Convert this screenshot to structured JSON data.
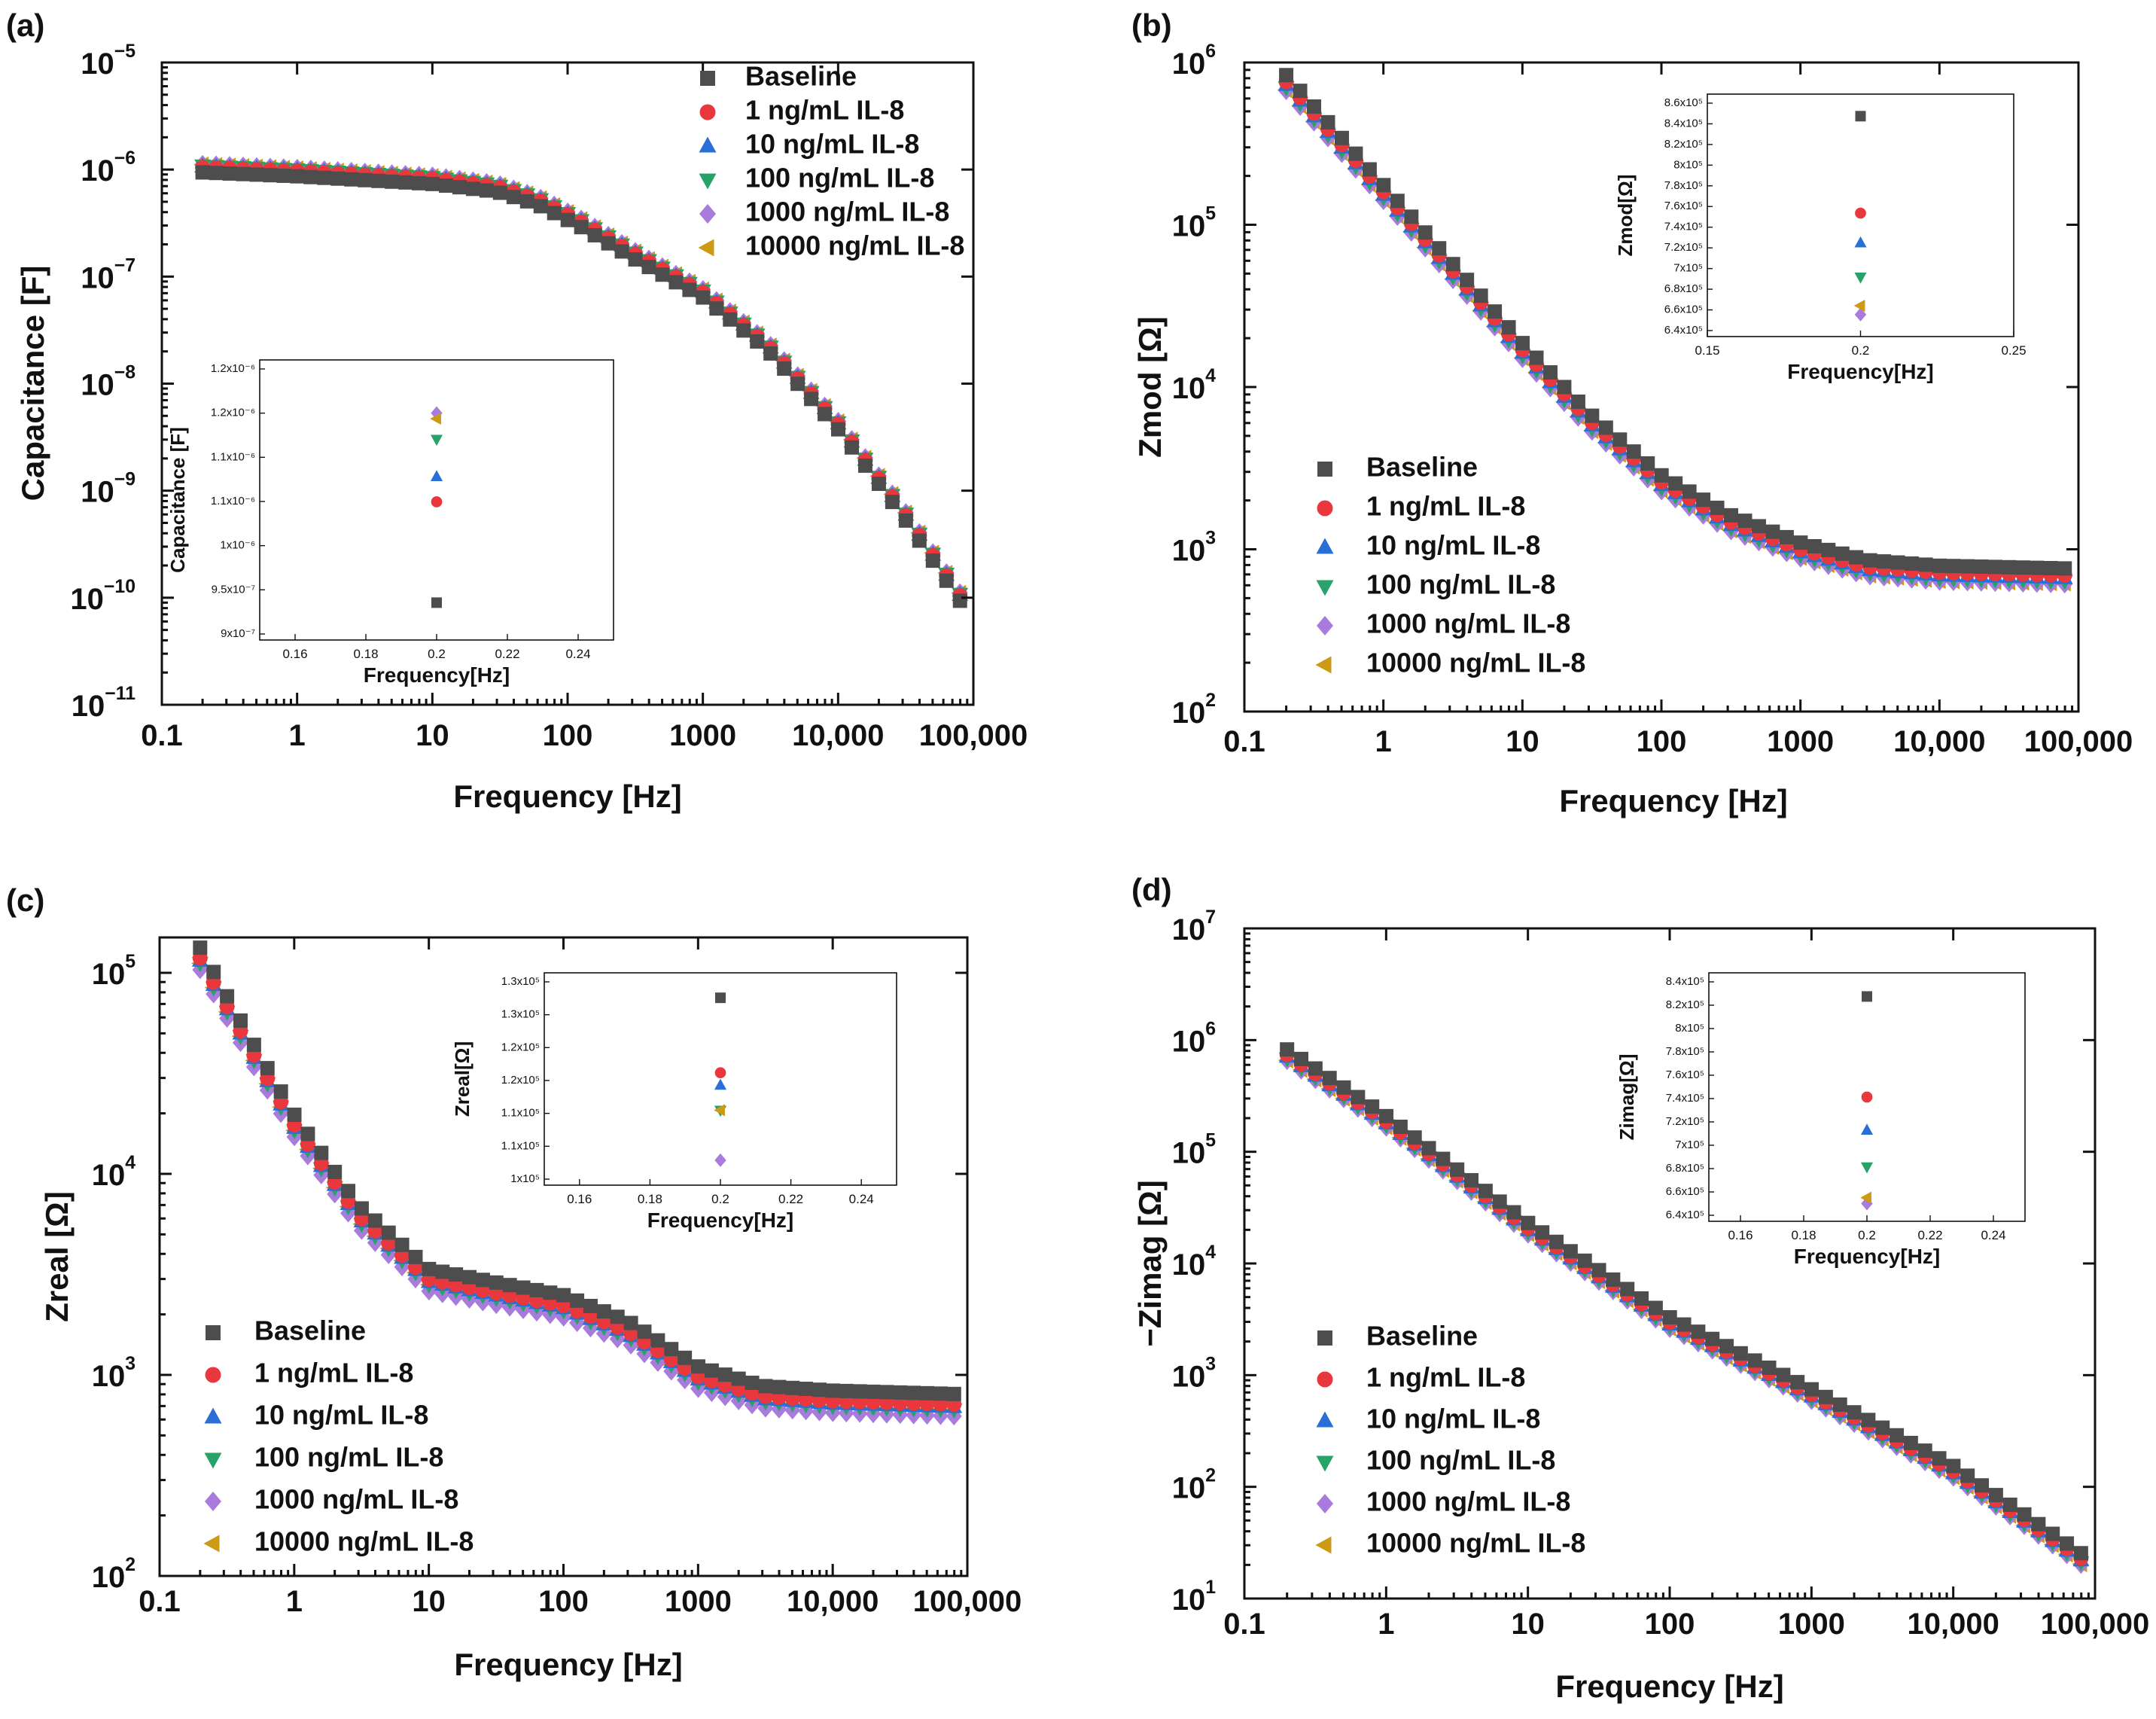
{
  "figure": {
    "series_names": [
      "Baseline",
      "1 ng/mL IL-8",
      "10 ng/mL IL-8",
      "100 ng/mL IL-8",
      "1000 ng/mL IL-8",
      "10000 ng/mL IL-8"
    ],
    "series_colors": [
      "#4d4d4d",
      "#e8383d",
      "#2a6fd6",
      "#27a36a",
      "#a87bdc",
      "#cc9a14"
    ],
    "series_markers": [
      "square",
      "circle",
      "triangle-up",
      "triangle-down",
      "diamond",
      "triangle-left"
    ]
  },
  "chart_data": [
    {
      "panel": "(a)",
      "type": "scatter",
      "xlabel": "Frequency [Hz]",
      "ylabel": "Capacitance [F]",
      "xscale": "log",
      "yscale": "log",
      "xlim": [
        0.1,
        100000
      ],
      "ylim": [
        1e-11,
        1e-05
      ],
      "xticks": [
        "0.1",
        "1",
        "10",
        "100",
        "1000",
        "10,000",
        "100,000"
      ],
      "yticks": [
        {
          "m": "10",
          "e": "−11"
        },
        {
          "m": "10",
          "e": "−10"
        },
        {
          "m": "10",
          "e": "−9"
        },
        {
          "m": "10",
          "e": "−8"
        },
        {
          "m": "10",
          "e": "−7"
        },
        {
          "m": "10",
          "e": "−6"
        },
        {
          "m": "10",
          "e": "−5"
        }
      ],
      "legend_position": "top-right",
      "knots_x": [
        0.2,
        1,
        10,
        30,
        60,
        120,
        300,
        1000,
        3000,
        10000,
        30000,
        100000
      ],
      "knots_y": [
        1e-06,
        9.2e-07,
        7.8e-07,
        6.6e-07,
        5e-07,
        3.2e-07,
        1.6e-07,
        6.8e-08,
        2.2e-08,
        4e-09,
        6.2e-10,
        6.5e-11
      ],
      "series_factors": [
        0.94,
        1.05,
        1.07,
        1.09,
        1.12,
        1.11
      ],
      "inset": {
        "xlabel": "Frequency[Hz]",
        "ylabel": "Capacitance [F]",
        "xlim": [
          0.15,
          0.25
        ],
        "ylim": [
          9e-07,
          1.2e-06
        ],
        "xticks": [
          "0.16",
          "0.18",
          "0.2",
          "0.22",
          "0.24"
        ],
        "yticks": [
          "9x10⁻⁷",
          "9.5x10⁻⁷",
          "1x10⁻⁶",
          "1.1x10⁻⁶",
          "1.1x10⁻⁶",
          "1.2x10⁻⁶",
          "1.2x10⁻⁶"
        ],
        "x": 0.2,
        "values": [
          9.4e-07,
          1.048e-06,
          1.075e-06,
          1.115e-06,
          1.143e-06,
          1.137e-06
        ]
      }
    },
    {
      "panel": "(b)",
      "type": "scatter",
      "xlabel": "Frequency [Hz]",
      "ylabel": "Zmod [Ω]",
      "xscale": "log",
      "yscale": "log",
      "xlim": [
        0.1,
        100000
      ],
      "ylim": [
        100,
        1000000
      ],
      "xticks": [
        "0.1",
        "1",
        "10",
        "100",
        "1000",
        "10,000",
        "100,000"
      ],
      "yticks": [
        {
          "m": "10",
          "e": "2"
        },
        {
          "m": "10",
          "e": "3"
        },
        {
          "m": "10",
          "e": "4"
        },
        {
          "m": "10",
          "e": "5"
        },
        {
          "m": "10",
          "e": "6"
        }
      ],
      "legend_position": "middle-left",
      "knots_x": [
        0.2,
        1,
        10,
        30,
        100,
        300,
        1000,
        3000,
        10000,
        100000
      ],
      "knots_y": [
        760000,
        160000,
        17000,
        6300,
        2600,
        1500,
        1000,
        780,
        720,
        690
      ],
      "series_factors": [
        1.1,
        1.0,
        0.96,
        0.92,
        0.88,
        0.89
      ],
      "inset": {
        "xlabel": "Frequency[Hz]",
        "ylabel": "Zmod[Ω]",
        "xlim": [
          0.15,
          0.25
        ],
        "ylim": [
          640000,
          860000
        ],
        "xticks": [
          "0.15",
          "0.2",
          "0.25"
        ],
        "yticks": [
          "6.4x10⁵",
          "6.6x10⁵",
          "6.8x10⁵",
          "7x10⁵",
          "7.2x10⁵",
          "7.4x10⁵",
          "7.6x10⁵",
          "7.8x10⁵",
          "8x10⁵",
          "8.2x10⁵",
          "8.4x10⁵",
          "8.6x10⁵"
        ],
        "x": 0.2,
        "values": [
          840000,
          752000,
          725000,
          694000,
          660000,
          668000
        ]
      }
    },
    {
      "panel": "(c)",
      "type": "scatter",
      "xlabel": "Frequency [Hz]",
      "ylabel": "Zreal [Ω]",
      "xscale": "log",
      "yscale": "log",
      "xlim": [
        0.1,
        100000
      ],
      "ylim": [
        100,
        150000
      ],
      "xticks": [
        "0.1",
        "1",
        "10",
        "100",
        "1000",
        "10,000",
        "100,000"
      ],
      "yticks": [
        {
          "m": "10",
          "e": "2"
        },
        {
          "m": "10",
          "e": "3"
        },
        {
          "m": "10",
          "e": "4"
        },
        {
          "m": "10",
          "e": "5"
        }
      ],
      "legend_position": "bottom-left",
      "knots_x": [
        0.2,
        0.5,
        1,
        3,
        10,
        30,
        100,
        300,
        1000,
        3000,
        10000,
        100000
      ],
      "knots_y": [
        115000,
        38000,
        17000,
        6000,
        2900,
        2500,
        2150,
        1600,
        950,
        760,
        720,
        690
      ],
      "series_factors": [
        1.16,
        1.03,
        1.0,
        0.97,
        0.9,
        0.97
      ],
      "inset": {
        "xlabel": "Frequency[Hz]",
        "ylabel": "Zreal[Ω]",
        "xlim": [
          0.15,
          0.25
        ],
        "ylim": [
          97000,
          131000
        ],
        "xticks": [
          "0.16",
          "0.18",
          "0.2",
          "0.22",
          "0.24"
        ],
        "yticks": [
          "1x10⁵",
          "1.1x10⁵",
          "1.1x10⁵",
          "1.2x10⁵",
          "1.2x10⁵",
          "1.3x10⁵",
          "1.3x10⁵"
        ],
        "x": 0.2,
        "values": [
          127000,
          115000,
          113000,
          109000,
          101000,
          109000
        ]
      }
    },
    {
      "panel": "(d)",
      "type": "scatter",
      "xlabel": "Frequency [Hz]",
      "ylabel": "−Zimag [Ω]",
      "xscale": "log",
      "yscale": "log",
      "xlim": [
        0.1,
        100000
      ],
      "ylim": [
        10,
        10000000
      ],
      "xticks": [
        "0.1",
        "1",
        "10",
        "100",
        "1000",
        "10,000",
        "100,000"
      ],
      "yticks": [
        {
          "m": "10",
          "e": "1"
        },
        {
          "m": "10",
          "e": "2"
        },
        {
          "m": "10",
          "e": "3"
        },
        {
          "m": "10",
          "e": "4"
        },
        {
          "m": "10",
          "e": "5"
        },
        {
          "m": "10",
          "e": "6"
        },
        {
          "m": "10",
          "e": "7"
        }
      ],
      "legend_position": "bottom-left",
      "knots_x": [
        0.2,
        1,
        10,
        100,
        1000,
        10000,
        100000
      ],
      "knots_y": [
        750000,
        190000,
        21000,
        3000,
        680,
        140,
        19
      ],
      "series_factors": [
        1.1,
        0.99,
        0.95,
        0.91,
        0.87,
        0.88
      ],
      "inset": {
        "xlabel": "Frequency[Hz]",
        "ylabel": "Zimag[Ω]",
        "xlim": [
          0.15,
          0.25
        ],
        "ylim": [
          640000,
          850000
        ],
        "xticks": [
          "0.16",
          "0.18",
          "0.2",
          "0.22",
          "0.24"
        ],
        "yticks": [
          "6.4x10⁵",
          "6.6x10⁵",
          "6.8x10⁵",
          "7x10⁵",
          "7.2x10⁵",
          "7.4x10⁵",
          "7.6x10⁵",
          "7.8x10⁵",
          "8x10⁵",
          "8.2x10⁵",
          "8.4x10⁵"
        ],
        "x": 0.2,
        "values": [
          830000,
          745000,
          717000,
          686000,
          655000,
          660000
        ]
      }
    }
  ]
}
